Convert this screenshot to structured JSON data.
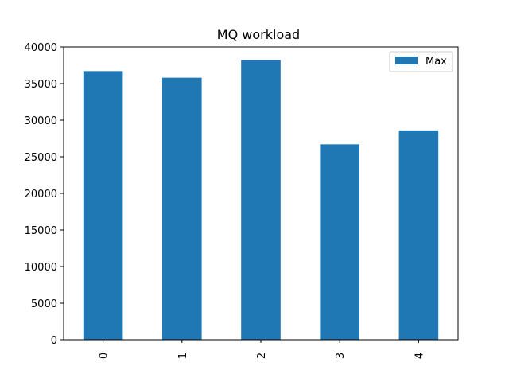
{
  "chart_data": {
    "type": "bar",
    "title": "MQ workload",
    "xlabel": "",
    "ylabel": "",
    "categories": [
      "0",
      "1",
      "2",
      "3",
      "4"
    ],
    "series": [
      {
        "name": "Max",
        "values": [
          36700,
          35800,
          38200,
          26700,
          28600
        ]
      }
    ],
    "ylim": [
      0,
      40000
    ],
    "yticks": [
      0,
      5000,
      10000,
      15000,
      20000,
      25000,
      30000,
      35000,
      40000
    ],
    "ytick_labels": [
      "0",
      "5000",
      "10000",
      "15000",
      "20000",
      "25000",
      "30000",
      "35000",
      "40000"
    ],
    "grid": false,
    "legend_position": "top-right",
    "bar_color": "#1f77b4",
    "xtick_rotation": -90
  }
}
